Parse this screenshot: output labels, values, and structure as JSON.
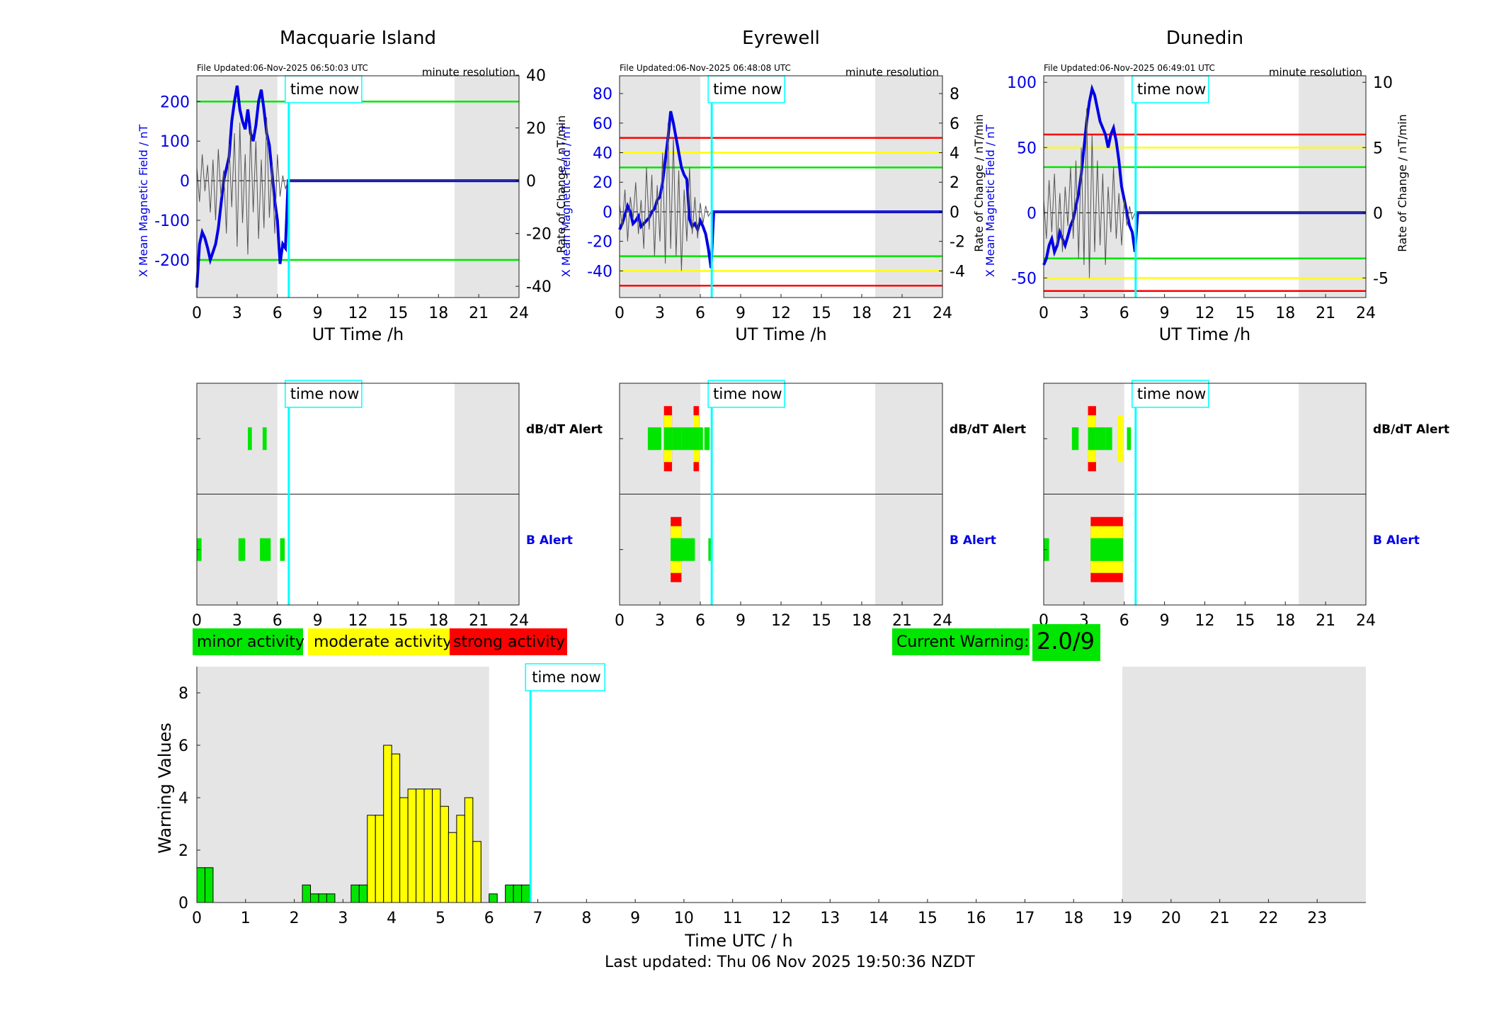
{
  "chart_data": [
    {
      "type": "line",
      "title": "Macquarie Island",
      "file_updated": "File Updated:06-Nov-2025 06:50:03 UTC",
      "resolution": "minute resolution",
      "time_now_label": "time now",
      "time_now": 6.85,
      "daylight": [
        [
          0,
          6.0
        ],
        [
          19.2,
          24
        ]
      ],
      "xlabel": "UT Time /h",
      "x_ticks": [
        0,
        3,
        6,
        9,
        12,
        15,
        18,
        21,
        24
      ],
      "xlim": [
        0,
        24
      ],
      "ylabel_left": "X Mean Magnetic Field / nT",
      "ylabel_right": "",
      "ylim_left": [
        -295,
        265
      ],
      "yticks_left": [
        -200,
        -100,
        0,
        100,
        200
      ],
      "ylim_right": [
        -44.25,
        39.75
      ],
      "yticks_right": [
        -40,
        -20,
        0,
        20,
        40
      ],
      "thresholds": [
        {
          "value": 200,
          "color": "#00e600"
        },
        {
          "value": -200,
          "color": "#00e600"
        }
      ],
      "series": [
        {
          "axis": "left",
          "color": "#0000e6",
          "x": [
            0,
            0.2,
            0.4,
            0.6,
            0.8,
            1.0,
            1.2,
            1.4,
            1.6,
            1.8,
            2.0,
            2.2,
            2.4,
            2.6,
            2.8,
            3.0,
            3.2,
            3.4,
            3.6,
            3.8,
            4.0,
            4.2,
            4.4,
            4.6,
            4.8,
            5.0,
            5.2,
            5.4,
            5.6,
            5.8,
            6.0,
            6.2,
            6.4,
            6.6,
            6.8,
            7.0,
            24
          ],
          "y": [
            -270,
            -160,
            -130,
            -145,
            -170,
            -200,
            -180,
            -160,
            -120,
            -60,
            0,
            30,
            60,
            150,
            200,
            240,
            180,
            150,
            130,
            180,
            120,
            100,
            140,
            200,
            230,
            180,
            120,
            90,
            20,
            -50,
            -100,
            -210,
            -160,
            -170,
            0,
            0,
            0
          ]
        },
        {
          "axis": "right",
          "color": "#555555",
          "x": [
            0,
            0.2,
            0.4,
            0.6,
            0.8,
            1.0,
            1.2,
            1.4,
            1.6,
            1.8,
            2.0,
            2.2,
            2.4,
            2.6,
            2.8,
            3.0,
            3.2,
            3.4,
            3.6,
            3.8,
            4.0,
            4.2,
            4.4,
            4.6,
            4.8,
            5.0,
            5.2,
            5.4,
            5.6,
            5.8,
            6.0,
            6.2,
            6.4,
            6.6,
            6.8,
            24
          ],
          "y": [
            5,
            -8,
            10,
            -4,
            6,
            -12,
            8,
            -15,
            12,
            -6,
            4,
            -20,
            14,
            -10,
            18,
            -25,
            22,
            -16,
            10,
            -28,
            20,
            -12,
            15,
            -22,
            8,
            -18,
            24,
            -14,
            6,
            -20,
            10,
            -6,
            2,
            -3,
            0,
            0
          ]
        }
      ]
    },
    {
      "type": "line",
      "title": "Eyrewell",
      "file_updated": "File Updated:06-Nov-2025 06:48:08 UTC",
      "resolution": "minute resolution",
      "time_now_label": "time now",
      "time_now": 6.85,
      "daylight": [
        [
          0,
          6.0
        ],
        [
          19.0,
          24
        ]
      ],
      "xlabel": "UT Time /h",
      "x_ticks": [
        0,
        3,
        6,
        9,
        12,
        15,
        18,
        21,
        24
      ],
      "xlim": [
        0,
        24
      ],
      "ylabel_left": "X Mean Magnetic Field / nT",
      "ylabel_right": "Rate of Change / nT/min",
      "ylim_left": [
        -58,
        92
      ],
      "yticks_left": [
        -40,
        -20,
        0,
        20,
        40,
        60,
        80
      ],
      "ylim_right": [
        -5.8,
        9.2
      ],
      "yticks_right": [
        -4,
        -2,
        0,
        2,
        4,
        6,
        8
      ],
      "thresholds": [
        {
          "value": 50,
          "color": "#ff0000"
        },
        {
          "value": 40,
          "color": "#ffff00"
        },
        {
          "value": 30,
          "color": "#00e600"
        },
        {
          "value": -30,
          "color": "#00e600"
        },
        {
          "value": -40,
          "color": "#ffff00"
        },
        {
          "value": -50,
          "color": "#ff0000"
        }
      ],
      "series": [
        {
          "axis": "left",
          "color": "#0000e6",
          "x": [
            0,
            0.2,
            0.4,
            0.6,
            0.8,
            1.0,
            1.2,
            1.4,
            1.6,
            1.8,
            2.0,
            2.2,
            2.4,
            2.6,
            2.8,
            3.0,
            3.2,
            3.4,
            3.6,
            3.8,
            4.0,
            4.2,
            4.4,
            4.6,
            4.8,
            5.0,
            5.2,
            5.4,
            5.6,
            5.8,
            6.0,
            6.2,
            6.4,
            6.6,
            6.8,
            7.0,
            24
          ],
          "y": [
            -12,
            -8,
            -2,
            4,
            0,
            -8,
            -6,
            -3,
            -10,
            -8,
            -6,
            -4,
            0,
            2,
            8,
            10,
            20,
            35,
            50,
            68,
            60,
            50,
            40,
            30,
            25,
            22,
            -5,
            -10,
            -8,
            -12,
            -6,
            -10,
            -15,
            -25,
            -38,
            0,
            0
          ]
        },
        {
          "axis": "right",
          "color": "#555555",
          "x": [
            0,
            0.2,
            0.4,
            0.6,
            0.8,
            1.0,
            1.2,
            1.4,
            1.6,
            1.8,
            2.0,
            2.2,
            2.4,
            2.6,
            2.8,
            3.0,
            3.2,
            3.4,
            3.6,
            3.8,
            4.0,
            4.2,
            4.4,
            4.6,
            4.8,
            5.0,
            5.2,
            5.4,
            5.6,
            5.8,
            6.0,
            6.2,
            6.4,
            6.6,
            6.8,
            24
          ],
          "y": [
            0.5,
            -1,
            1.5,
            -2,
            1,
            -0.5,
            2,
            -1.5,
            0.8,
            -2.5,
            3,
            -1.2,
            2.5,
            -3,
            1.8,
            -2,
            4,
            -3.5,
            6,
            -2.5,
            5,
            -3,
            2.8,
            -4,
            1.5,
            -2,
            3,
            -1.5,
            1,
            -1.8,
            0.6,
            -0.8,
            0.4,
            -0.3,
            0,
            0
          ]
        }
      ]
    },
    {
      "type": "line",
      "title": "Dunedin",
      "file_updated": "File Updated:06-Nov-2025 06:49:01 UTC",
      "resolution": "minute resolution",
      "time_now_label": "time now",
      "time_now": 6.85,
      "daylight": [
        [
          0,
          6.0
        ],
        [
          19.0,
          24
        ]
      ],
      "xlabel": "UT Time /h",
      "x_ticks": [
        0,
        3,
        6,
        9,
        12,
        15,
        18,
        21,
        24
      ],
      "xlim": [
        0,
        24
      ],
      "ylabel_left": "X Mean Magnetic Field / nT",
      "ylabel_right": "Rate of Change / nT/min",
      "ylim_left": [
        -65,
        105
      ],
      "yticks_left": [
        -50,
        0,
        50,
        100
      ],
      "ylim_right": [
        -6.5,
        10.5
      ],
      "yticks_right": [
        -5,
        0,
        5,
        10
      ],
      "thresholds": [
        {
          "value": 60,
          "color": "#ff0000"
        },
        {
          "value": 50,
          "color": "#ffff00"
        },
        {
          "value": 35,
          "color": "#00e600"
        },
        {
          "value": -35,
          "color": "#00e600"
        },
        {
          "value": -50,
          "color": "#ffff00"
        },
        {
          "value": -60,
          "color": "#ff0000"
        }
      ],
      "series": [
        {
          "axis": "left",
          "color": "#0000e6",
          "x": [
            0,
            0.2,
            0.4,
            0.6,
            0.8,
            1.0,
            1.2,
            1.4,
            1.6,
            1.8,
            2.0,
            2.2,
            2.4,
            2.6,
            2.8,
            3.0,
            3.2,
            3.4,
            3.6,
            3.8,
            4.0,
            4.2,
            4.4,
            4.6,
            4.8,
            5.0,
            5.2,
            5.4,
            5.6,
            5.8,
            6.0,
            6.2,
            6.4,
            6.6,
            6.8,
            7.0,
            24
          ],
          "y": [
            -40,
            -35,
            -25,
            -20,
            -30,
            -25,
            -15,
            -20,
            -25,
            -18,
            -10,
            -5,
            5,
            15,
            30,
            50,
            70,
            85,
            95,
            90,
            80,
            70,
            65,
            60,
            50,
            60,
            65,
            55,
            40,
            20,
            10,
            0,
            -10,
            -15,
            -30,
            0,
            0
          ]
        },
        {
          "axis": "right",
          "color": "#555555",
          "x": [
            0,
            0.2,
            0.4,
            0.6,
            0.8,
            1.0,
            1.2,
            1.4,
            1.6,
            1.8,
            2.0,
            2.2,
            2.4,
            2.6,
            2.8,
            3.0,
            3.2,
            3.4,
            3.6,
            3.8,
            4.0,
            4.2,
            4.4,
            4.6,
            4.8,
            5.0,
            5.2,
            5.4,
            5.6,
            5.8,
            6.0,
            6.2,
            6.4,
            6.6,
            6.8,
            24
          ],
          "y": [
            1,
            -2,
            2.5,
            -1.5,
            3,
            -2.5,
            1.5,
            -3,
            2,
            -1,
            3.5,
            -2,
            4,
            -3.5,
            5,
            -4,
            8,
            -5,
            6,
            -3,
            4,
            -2.5,
            3,
            -4,
            2,
            -1.5,
            3.5,
            -2,
            1.5,
            -2.5,
            1,
            -1,
            0.5,
            -0.5,
            0,
            0
          ]
        }
      ]
    },
    {
      "type": "heatmap",
      "panel": "alerts",
      "station": "Macquarie Island",
      "rows": [
        "dB/dT Alert",
        "B Alert"
      ],
      "x_ticks": [
        0,
        3,
        6,
        9,
        12,
        15,
        18,
        21,
        24
      ],
      "xlim": [
        0,
        24
      ],
      "time_now_label": "time now",
      "time_now": 6.85,
      "daylight": [
        [
          0,
          6.0
        ],
        [
          19.2,
          24
        ]
      ],
      "alerts": [
        {
          "row": 0,
          "start": 3.8,
          "end": 4.1,
          "level": 1
        },
        {
          "row": 0,
          "start": 4.9,
          "end": 5.2,
          "level": 1
        },
        {
          "row": 1,
          "start": 0.0,
          "end": 0.35,
          "level": 1
        },
        {
          "row": 1,
          "start": 3.1,
          "end": 3.6,
          "level": 1
        },
        {
          "row": 1,
          "start": 4.7,
          "end": 5.5,
          "level": 1
        },
        {
          "row": 1,
          "start": 6.2,
          "end": 6.55,
          "level": 1
        }
      ]
    },
    {
      "type": "heatmap",
      "panel": "alerts",
      "station": "Eyrewell",
      "rows": [
        "dB/dT Alert",
        "B Alert"
      ],
      "x_ticks": [
        0,
        3,
        6,
        9,
        12,
        15,
        18,
        21,
        24
      ],
      "xlim": [
        0,
        24
      ],
      "time_now_label": "time now",
      "time_now": 6.85,
      "daylight": [
        [
          0,
          6.0
        ],
        [
          19.0,
          24
        ]
      ],
      "alerts": [
        {
          "row": 0,
          "start": 2.1,
          "end": 3.1,
          "level": 1
        },
        {
          "row": 0,
          "start": 3.3,
          "end": 3.9,
          "level": 3
        },
        {
          "row": 0,
          "start": 3.9,
          "end": 4.6,
          "level": 1
        },
        {
          "row": 0,
          "start": 4.6,
          "end": 5.5,
          "level": 1
        },
        {
          "row": 0,
          "start": 5.5,
          "end": 5.9,
          "level": 3
        },
        {
          "row": 0,
          "start": 5.9,
          "end": 6.2,
          "level": 1
        },
        {
          "row": 0,
          "start": 6.3,
          "end": 6.7,
          "level": 1
        },
        {
          "row": 1,
          "start": 3.8,
          "end": 4.6,
          "level": 3
        },
        {
          "row": 1,
          "start": 3.8,
          "end": 5.6,
          "level": 1
        },
        {
          "row": 1,
          "start": 6.6,
          "end": 6.9,
          "level": 1
        }
      ]
    },
    {
      "type": "heatmap",
      "panel": "alerts",
      "station": "Dunedin",
      "rows": [
        "dB/dT Alert",
        "B Alert"
      ],
      "x_ticks": [
        0,
        3,
        6,
        9,
        12,
        15,
        18,
        21,
        24
      ],
      "xlim": [
        0,
        24
      ],
      "time_now_label": "time now",
      "time_now": 6.85,
      "daylight": [
        [
          0,
          6.0
        ],
        [
          19.0,
          24
        ]
      ],
      "alerts": [
        {
          "row": 0,
          "start": 2.1,
          "end": 2.6,
          "level": 1
        },
        {
          "row": 0,
          "start": 3.3,
          "end": 3.9,
          "level": 3
        },
        {
          "row": 0,
          "start": 3.9,
          "end": 4.6,
          "level": 1
        },
        {
          "row": 0,
          "start": 4.6,
          "end": 5.1,
          "level": 1
        },
        {
          "row": 0,
          "start": 5.5,
          "end": 5.9,
          "level": 2
        },
        {
          "row": 0,
          "start": 6.2,
          "end": 6.5,
          "level": 1
        },
        {
          "row": 1,
          "start": 0.0,
          "end": 0.4,
          "level": 1
        },
        {
          "row": 1,
          "start": 3.5,
          "end": 5.9,
          "level": 3
        },
        {
          "row": 1,
          "start": 3.5,
          "end": 5.9,
          "level": 1
        }
      ]
    },
    {
      "type": "bar",
      "panel": "warning",
      "xlabel": "Time UTC / h",
      "ylabel": "Warning Values",
      "xlim": [
        0,
        24
      ],
      "ylim": [
        0,
        9
      ],
      "x_ticks": [
        0,
        1,
        2,
        3,
        4,
        5,
        6,
        7,
        8,
        9,
        10,
        11,
        12,
        13,
        14,
        15,
        16,
        17,
        18,
        19,
        20,
        21,
        22,
        23
      ],
      "y_ticks": [
        0,
        2,
        4,
        6,
        8
      ],
      "daylight": [
        [
          0,
          6.0
        ],
        [
          19.0,
          24
        ]
      ],
      "time_now_label": "time now",
      "time_now": 6.85,
      "bar_width": 0.1667,
      "bars": [
        {
          "x": 0.0,
          "v": 1.33
        },
        {
          "x": 0.1667,
          "v": 1.33
        },
        {
          "x": 2.1667,
          "v": 0.67
        },
        {
          "x": 2.3333,
          "v": 0.33
        },
        {
          "x": 2.5,
          "v": 0.33
        },
        {
          "x": 2.6667,
          "v": 0.33
        },
        {
          "x": 3.1667,
          "v": 0.67
        },
        {
          "x": 3.3333,
          "v": 0.67
        },
        {
          "x": 3.5,
          "v": 3.33
        },
        {
          "x": 3.6667,
          "v": 3.33
        },
        {
          "x": 3.8333,
          "v": 6.0
        },
        {
          "x": 4.0,
          "v": 5.67
        },
        {
          "x": 4.1667,
          "v": 4.0
        },
        {
          "x": 4.3333,
          "v": 4.33
        },
        {
          "x": 4.5,
          "v": 4.33
        },
        {
          "x": 4.6667,
          "v": 4.33
        },
        {
          "x": 4.8333,
          "v": 4.33
        },
        {
          "x": 5.0,
          "v": 3.67
        },
        {
          "x": 5.1667,
          "v": 2.67
        },
        {
          "x": 5.3333,
          "v": 3.33
        },
        {
          "x": 5.5,
          "v": 4.0
        },
        {
          "x": 5.6667,
          "v": 2.33
        },
        {
          "x": 6.0,
          "v": 0.33
        },
        {
          "x": 6.3333,
          "v": 0.67
        },
        {
          "x": 6.5,
          "v": 0.67
        },
        {
          "x": 6.6667,
          "v": 0.67
        }
      ]
    }
  ],
  "legend": {
    "minor": "minor activity",
    "moderate": "moderate activity",
    "strong": "strong activity"
  },
  "current_warning": {
    "label": "Current Warning:",
    "value": "2.0/9"
  },
  "last_updated": "Last updated: Thu 06 Nov 2025 19:50:36 NZDT",
  "colors": {
    "minor": "#00e600",
    "moderate": "#ffff00",
    "strong": "#ff0000",
    "field": "#0000e6",
    "daylight": "#e5e5e5",
    "time_now": "#00ffff"
  }
}
